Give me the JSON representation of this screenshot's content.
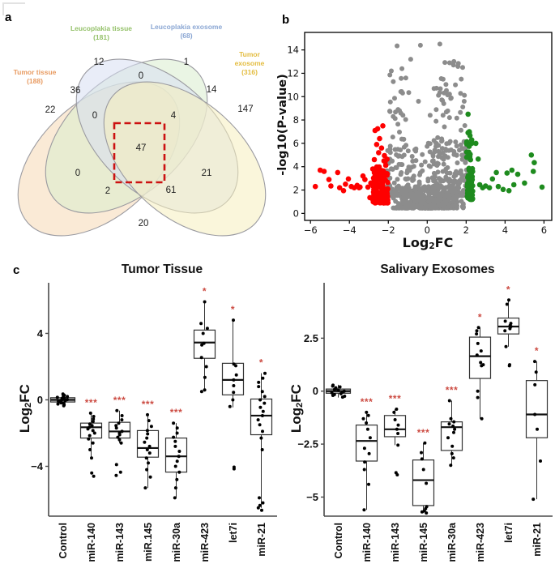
{
  "panels": {
    "a": "a",
    "b": "b",
    "c": "c"
  },
  "chart_data": [
    {
      "type": "venn",
      "sets": [
        {
          "id": "tumor-tissue",
          "name": "Tumor tissue",
          "count": "(188)",
          "label_color": "#e89a60",
          "fill": "#f6d8b4"
        },
        {
          "id": "leucoplakia-tissue",
          "name": "Leucoplakia tissue",
          "count": "(181)",
          "label_color": "#94c169",
          "fill": "#d9eccd"
        },
        {
          "id": "leucoplakia-exosome",
          "name": "Leucoplakia exosome",
          "count": "(68)",
          "label_color": "#8aa6d3",
          "fill": "#d7def2"
        },
        {
          "id": "tumor-exosome",
          "name": "Tumor exosome",
          "count": "(316)",
          "label_color": "#e3bc3f",
          "fill": "#f6efbe"
        }
      ],
      "regions": [
        {
          "id": "tt",
          "value": 22
        },
        {
          "id": "lt",
          "value": 12
        },
        {
          "id": "le",
          "value": 1
        },
        {
          "id": "te",
          "value": 147
        },
        {
          "id": "tt-lt",
          "value": 36
        },
        {
          "id": "lt-le",
          "value": 0
        },
        {
          "id": "le-te",
          "value": 14
        },
        {
          "id": "tt-lt-le",
          "value": 0
        },
        {
          "id": "lt-le-te",
          "value": 4
        },
        {
          "id": "tt-le",
          "value": 0
        },
        {
          "id": "lt-te",
          "value": 21
        },
        {
          "id": "tt-le-te",
          "value": 2
        },
        {
          "id": "tt-lt-te",
          "value": 61
        },
        {
          "id": "tt-te",
          "value": 20
        },
        {
          "id": "all",
          "value": 47,
          "highlighted": true
        }
      ],
      "highlight_color": "#cc1111"
    },
    {
      "type": "scatter",
      "xlabel": "Log2FC",
      "xlabel_parts": {
        "pre": "Log",
        "sub": "2",
        "post": "FC"
      },
      "ylabel": "-log10(P-value)",
      "xlim": [
        -6.3,
        6.4
      ],
      "ylim": [
        -0.6,
        15.5
      ],
      "xticks": [
        {
          "v": -6,
          "t": "−6"
        },
        {
          "v": -4,
          "t": "−4"
        },
        {
          "v": -2,
          "t": "−2"
        },
        {
          "v": 0,
          "t": "0"
        },
        {
          "v": 2,
          "t": "2"
        },
        {
          "v": 4,
          "t": "4"
        },
        {
          "v": 6,
          "t": "6"
        }
      ],
      "yticks": [
        {
          "v": 0,
          "t": "0"
        },
        {
          "v": 2,
          "t": "2"
        },
        {
          "v": 4,
          "t": "4"
        },
        {
          "v": 6,
          "t": "6"
        },
        {
          "v": 8,
          "t": "8"
        },
        {
          "v": 10,
          "t": "10"
        },
        {
          "v": 12,
          "t": "12"
        },
        {
          "v": 14,
          "t": "14"
        }
      ],
      "thresholds": {
        "log2fc_down": -2,
        "log2fc_up": 2
      },
      "colors": {
        "gray": "#8c8c8c",
        "red": "#fe0000",
        "green": "#1e8b1e"
      },
      "clusters": [
        {
          "color": "gray",
          "n": 420,
          "x": [
            -2.05,
            2.05
          ],
          "y": [
            0.45,
            2.2
          ],
          "xbias": "center",
          "ybias": "bottom"
        },
        {
          "color": "gray",
          "n": 110,
          "x": [
            -2.1,
            -0.55
          ],
          "y": [
            1.5,
            5.5
          ],
          "ybias": "bottom"
        },
        {
          "color": "gray",
          "n": 170,
          "x": [
            0.25,
            2.05
          ],
          "y": [
            1.5,
            6.5
          ],
          "ybias": "bottom"
        },
        {
          "color": "gray",
          "n": 26,
          "x": [
            -1.95,
            -1.05
          ],
          "y": [
            5.5,
            12.6
          ]
        },
        {
          "color": "gray",
          "n": 40,
          "x": [
            0.45,
            1.95
          ],
          "y": [
            5.0,
            13.2
          ]
        },
        {
          "color": "gray",
          "n": 30,
          "x": [
            -0.6,
            0.4
          ],
          "y": [
            2.2,
            6.5
          ],
          "ybias": "bottom"
        },
        {
          "color": "red",
          "n": 150,
          "x": [
            -2.8,
            -2.02
          ],
          "y": [
            0.9,
            4.7
          ],
          "ybias": "bottom"
        },
        {
          "color": "green",
          "n": 70,
          "x": [
            2.02,
            2.35
          ],
          "y": [
            1.2,
            7.3
          ],
          "ybias": "bottom"
        }
      ],
      "points": {
        "gray_top": [
          [
            -1.55,
            14.35
          ],
          [
            -0.35,
            14.4
          ],
          [
            0.65,
            14.5
          ],
          [
            -0.85,
            13.2
          ],
          [
            1.15,
            12.9
          ],
          [
            1.6,
            12.85
          ],
          [
            -1.3,
            12.4
          ],
          [
            -1.1,
            11.6
          ],
          [
            1.75,
            11.5
          ],
          [
            0.35,
            10.7
          ],
          [
            -0.95,
            10.35
          ],
          [
            1.45,
            11.0
          ],
          [
            1.05,
            10.15
          ],
          [
            -0.45,
            9.6
          ],
          [
            0.85,
            9.4
          ],
          [
            -1.5,
            8.9
          ],
          [
            1.9,
            9.6
          ],
          [
            0.15,
            8.4
          ],
          [
            -1.75,
            8.3
          ]
        ],
        "red_high": [
          [
            -2.55,
            7.25
          ],
          [
            -2.28,
            7.5
          ],
          [
            -2.68,
            7.1
          ],
          [
            -2.45,
            6.4
          ],
          [
            -2.6,
            5.9
          ],
          [
            -2.35,
            5.6
          ],
          [
            -2.5,
            5.2
          ],
          [
            -2.2,
            4.95
          ]
        ],
        "red_outliers": [
          [
            -5.75,
            2.3
          ],
          [
            -5.5,
            3.7
          ],
          [
            -5.3,
            3.6
          ],
          [
            -5.05,
            2.9
          ],
          [
            -4.95,
            2.35
          ],
          [
            -4.6,
            3.5
          ],
          [
            -4.5,
            2.2
          ],
          [
            -4.3,
            1.95
          ],
          [
            -4.2,
            2.5
          ],
          [
            -4.05,
            2.95
          ],
          [
            -3.9,
            2.3
          ],
          [
            -3.75,
            2.2
          ],
          [
            -3.6,
            2.4
          ],
          [
            -3.45,
            2.25
          ],
          [
            -3.3,
            3.2
          ],
          [
            -3.2,
            2.9
          ],
          [
            -3.05,
            2.25
          ],
          [
            -2.95,
            1.35
          ],
          [
            -3.5,
            2.2
          ],
          [
            -2.9,
            2.6
          ]
        ],
        "green_high": [
          [
            2.1,
            8.5
          ]
        ],
        "green_outliers": [
          [
            2.5,
            6.0
          ],
          [
            2.62,
            4.65
          ],
          [
            2.7,
            2.45
          ],
          [
            2.85,
            2.2
          ],
          [
            3.0,
            2.35
          ],
          [
            3.2,
            2.2
          ],
          [
            3.35,
            2.95
          ],
          [
            3.55,
            3.5
          ],
          [
            3.65,
            2.3
          ],
          [
            3.9,
            2.05
          ],
          [
            4.1,
            3.45
          ],
          [
            4.35,
            3.7
          ],
          [
            4.45,
            2.45
          ],
          [
            4.65,
            3.35
          ],
          [
            5.0,
            2.6
          ],
          [
            5.35,
            5.0
          ],
          [
            5.5,
            4.35
          ],
          [
            5.9,
            2.25
          ],
          [
            5.45,
            3.6
          ],
          [
            4.2,
            1.95
          ]
        ]
      }
    },
    {
      "type": "box",
      "title": "Tumor Tissue",
      "ylabel": "Log2FC",
      "ylabel_parts": {
        "pre": "Log",
        "sub": "2",
        "post": "FC"
      },
      "ylim": [
        -7.0,
        6.9
      ],
      "yticks": [
        {
          "v": -4,
          "t": "−4"
        },
        {
          "v": 0,
          "t": "0"
        },
        {
          "v": 4,
          "t": "4"
        }
      ],
      "sig_color": "#cc4b42",
      "categories": [
        {
          "label": "Control",
          "sig": "",
          "wide": true,
          "fill": "#cfcfcf",
          "box": {
            "med": 0,
            "q1": -0.13,
            "q3": 0.13,
            "lo": -0.38,
            "hi": 0.38
          },
          "points": [
            0.35,
            0.3,
            0.28,
            0.25,
            0.2,
            0.18,
            0.15,
            0.12,
            0.1,
            0.08,
            0.05,
            0.02,
            0,
            -0.02,
            -0.05,
            -0.08,
            -0.1,
            -0.12,
            -0.15,
            -0.18,
            -0.2,
            -0.25,
            -0.3,
            -0.35
          ]
        },
        {
          "label": "miR-140",
          "sig": "***",
          "box": {
            "med": -1.65,
            "q1": -2.3,
            "q3": -1.4,
            "lo": -3.5,
            "hi": -0.8
          },
          "points": [
            -0.8,
            -1.0,
            -1.15,
            -1.3,
            -1.45,
            -1.55,
            -1.65,
            -1.75,
            -1.85,
            -2.0,
            -2.15,
            -2.35,
            -2.6,
            -3.0,
            -3.5,
            -4.4,
            -4.6
          ]
        },
        {
          "label": "miR-143",
          "sig": "***",
          "box": {
            "med": -1.9,
            "q1": -2.3,
            "q3": -1.35,
            "lo": -2.6,
            "hi": -0.65
          },
          "points": [
            -0.65,
            -0.95,
            -1.2,
            -1.4,
            -1.55,
            -1.7,
            -1.9,
            -2.0,
            -2.1,
            -2.25,
            -2.4,
            -2.6,
            -3.9,
            -4.35,
            -4.55
          ]
        },
        {
          "label": "miR.145",
          "sig": "***",
          "box": {
            "med": -2.9,
            "q1": -3.45,
            "q3": -1.85,
            "lo": -5.3,
            "hi": -0.9
          },
          "points": [
            -0.9,
            -1.25,
            -1.6,
            -1.85,
            -2.05,
            -2.3,
            -2.55,
            -2.8,
            -3.0,
            -3.2,
            -3.5,
            -3.8,
            -4.2,
            -4.65,
            -5.3
          ]
        },
        {
          "label": "miR-30a",
          "sig": "***",
          "box": {
            "med": -3.4,
            "q1": -4.35,
            "q3": -2.3,
            "lo": -5.9,
            "hi": -1.4
          },
          "points": [
            -1.4,
            -1.7,
            -2.0,
            -2.25,
            -2.5,
            -2.8,
            -3.1,
            -3.4,
            -3.7,
            -4.0,
            -4.35,
            -4.8,
            -5.3,
            -5.9
          ]
        },
        {
          "label": "miR-423",
          "sig": "*",
          "box": {
            "med": 3.45,
            "q1": 2.5,
            "q3": 4.2,
            "lo": 0.5,
            "hi": 5.9
          },
          "points": [
            5.9,
            4.6,
            4.3,
            4.0,
            3.4,
            3.3,
            2.55,
            2.0,
            1.35,
            0.6,
            0.5
          ]
        },
        {
          "label": "let7i",
          "sig": "*",
          "box": {
            "med": 1.2,
            "q1": 0.3,
            "q3": 2.2,
            "lo": -0.45,
            "hi": 4.8
          },
          "points": [
            4.8,
            2.15,
            2.05,
            1.5,
            1.2,
            0.85,
            0.45,
            0.0,
            -0.4,
            -4.05,
            -4.15
          ]
        },
        {
          "label": "miR-21",
          "sig": "*",
          "box": {
            "med": -0.95,
            "q1": -2.1,
            "q3": 0.05,
            "lo": -6.5,
            "hi": 1.6
          },
          "points": [
            1.6,
            1.3,
            1.05,
            0.8,
            0.5,
            0.2,
            0.0,
            -0.2,
            -0.45,
            -0.7,
            -0.95,
            -1.2,
            -1.5,
            -1.9,
            -2.3,
            -3.0,
            -5.9,
            -6.2,
            -6.35,
            -6.5,
            -6.65
          ]
        }
      ]
    },
    {
      "type": "box",
      "title": "Salivary Exosomes",
      "ylabel": "Log2FC",
      "ylabel_parts": {
        "pre": "Log",
        "sub": "2",
        "post": "FC"
      },
      "ylim": [
        -5.9,
        5.0
      ],
      "yticks": [
        {
          "v": -5,
          "t": "−5"
        },
        {
          "v": -2.5,
          "t": "−2.5"
        },
        {
          "v": 0,
          "t": "0"
        },
        {
          "v": 2.5,
          "t": "2.5"
        }
      ],
      "sig_color": "#cc4b42",
      "categories": [
        {
          "label": "Control",
          "sig": "",
          "wide": true,
          "fill": "#cfcfcf",
          "box": {
            "med": 0,
            "q1": -0.1,
            "q3": 0.1,
            "lo": -0.3,
            "hi": 0.3
          },
          "points": [
            0.28,
            0.24,
            0.2,
            0.16,
            0.12,
            0.08,
            0.04,
            0,
            -0.04,
            -0.08,
            -0.12,
            -0.16,
            -0.2,
            -0.24,
            -0.28
          ]
        },
        {
          "label": "miR-140",
          "sig": "***",
          "box": {
            "med": -2.35,
            "q1": -3.3,
            "q3": -1.6,
            "lo": -5.6,
            "hi": -1.0
          },
          "points": [
            -1.0,
            -1.15,
            -1.3,
            -1.5,
            -1.8,
            -2.2,
            -2.7,
            -2.95,
            -3.35,
            -3.7,
            -4.4,
            -5.6
          ]
        },
        {
          "label": "miR-143",
          "sig": "***",
          "box": {
            "med": -1.8,
            "q1": -2.15,
            "q3": -1.15,
            "lo": -2.55,
            "hi": -0.85
          },
          "points": [
            -0.85,
            -1.0,
            -1.35,
            -1.6,
            -1.8,
            -2.0,
            -2.55,
            -3.85,
            -3.95
          ]
        },
        {
          "label": "miR-145",
          "sig": "***",
          "box": {
            "med": -4.2,
            "q1": -5.4,
            "q3": -3.25,
            "lo": -5.75,
            "hi": -2.45
          },
          "points": [
            -2.45,
            -2.9,
            -3.2,
            -3.7,
            -4.35,
            -5.45,
            -5.55,
            -5.65,
            -5.7,
            -5.75
          ]
        },
        {
          "label": "miR-30a",
          "sig": "***",
          "box": {
            "med": -1.7,
            "q1": -2.8,
            "q3": -1.45,
            "lo": -3.5,
            "hi": -0.45
          },
          "points": [
            -0.45,
            -1.3,
            -1.45,
            -1.55,
            -1.65,
            -1.8,
            -1.95,
            -2.2,
            -2.6,
            -2.95,
            -3.15,
            -3.5
          ]
        },
        {
          "label": "miR-423",
          "sig": "*",
          "box": {
            "med": 1.65,
            "q1": 0.6,
            "q3": 2.55,
            "lo": -1.3,
            "hi": 3.0
          },
          "points": [
            3.0,
            2.85,
            2.7,
            2.25,
            1.9,
            1.7,
            1.35,
            1.25,
            1.2,
            0.0,
            -0.3,
            -1.3
          ]
        },
        {
          "label": "let7i",
          "sig": "*",
          "box": {
            "med": 3.05,
            "q1": 2.7,
            "q3": 3.45,
            "lo": 2.1,
            "hi": 4.3
          },
          "points": [
            4.3,
            4.1,
            3.3,
            3.2,
            3.1,
            3.05,
            2.95,
            2.85,
            2.1,
            1.25,
            1.2
          ]
        },
        {
          "label": "miR-21",
          "sig": "*",
          "box": {
            "med": -1.1,
            "q1": -2.2,
            "q3": 0.5,
            "lo": -5.1,
            "hi": 1.4
          },
          "points": [
            1.4,
            0.9,
            0.3,
            -1.1,
            -1.8,
            -3.3,
            -5.1
          ]
        }
      ]
    }
  ]
}
